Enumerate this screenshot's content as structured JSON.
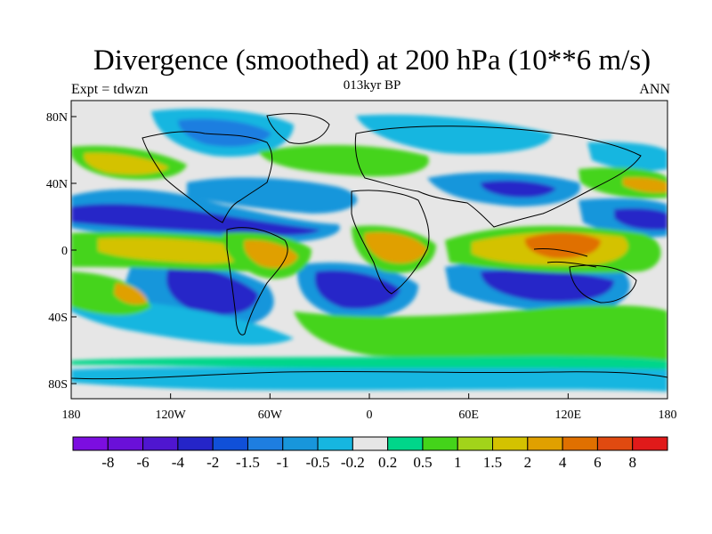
{
  "title": "Divergence (smoothed) at 200 hPa (10**6 m/s)",
  "subtitle_left": "Expt = tdwzn",
  "subtitle_center": "013kyr BP",
  "subtitle_right": "ANN",
  "map": {
    "lon_ticks": [
      "180",
      "120W",
      "60W",
      "0",
      "60E",
      "120E",
      "180"
    ],
    "lat_ticks": [
      "80N",
      "40N",
      "0",
      "40S",
      "80S"
    ],
    "background_color": "#e6e6e6",
    "coastline_color": "#000000"
  },
  "colorbar": {
    "colors": [
      "#7c0ee0",
      "#6a10d8",
      "#4f16d0",
      "#2525c8",
      "#1050d8",
      "#1e7ee0",
      "#1896db",
      "#16b6e0",
      "#e6e6e6",
      "#00d68a",
      "#44d41a",
      "#a2d41a",
      "#d4c200",
      "#e0a000",
      "#e07000",
      "#e04a10",
      "#e01a1a"
    ],
    "labels": [
      "-8",
      "-6",
      "-4",
      "-2",
      "-1.5",
      "-1",
      "-0.5",
      "-0.2",
      "0.2",
      "0.5",
      "1",
      "1.5",
      "2",
      "4",
      "6",
      "8"
    ]
  }
}
